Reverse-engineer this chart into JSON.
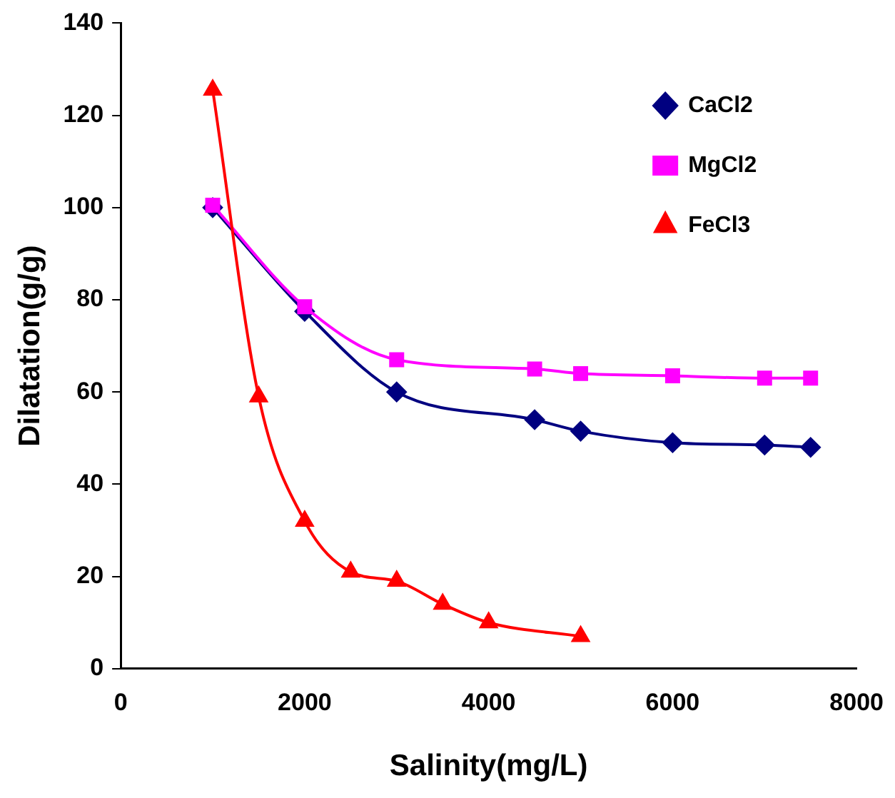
{
  "chart_data": {
    "type": "line",
    "xlabel": "Salinity(mg/L)",
    "ylabel": "Dilatation(g/g)",
    "xlim": [
      0,
      8000
    ],
    "xticks": [
      0,
      2000,
      4000,
      6000,
      8000
    ],
    "ylim": [
      0,
      140
    ],
    "yticks": [
      0,
      20,
      40,
      60,
      80,
      100,
      120,
      140
    ],
    "grid": false,
    "legend": "top right",
    "series": [
      {
        "name": "CaCl2",
        "color": "#000080",
        "marker": "diamond",
        "x": [
          1000,
          2000,
          3000,
          4500,
          5000,
          6000,
          7000,
          7500
        ],
        "values": [
          100,
          77.5,
          60,
          54,
          51.5,
          49,
          48.5,
          48
        ]
      },
      {
        "name": "MgCl2",
        "color": "#ff00ff",
        "marker": "square",
        "x": [
          1000,
          2000,
          3000,
          4500,
          5000,
          6000,
          7000,
          7500
        ],
        "values": [
          100.5,
          78.5,
          67,
          65,
          64,
          63.5,
          63,
          63
        ]
      },
      {
        "name": "FeCl3",
        "color": "#ff0000",
        "marker": "triangle",
        "x": [
          1000,
          1500,
          2000,
          2500,
          3000,
          3500,
          4000,
          5000
        ],
        "values": [
          125.5,
          59,
          32,
          21,
          19,
          14,
          10,
          7
        ]
      }
    ]
  }
}
